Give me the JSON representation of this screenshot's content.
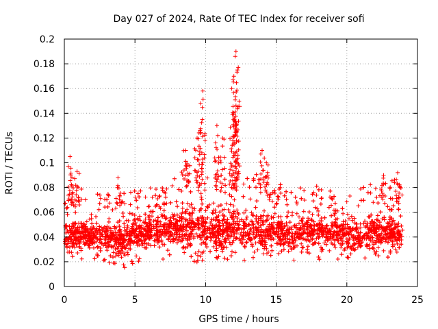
{
  "chart_data": {
    "type": "scatter",
    "title": "Day 027 of 2024, Rate Of TEC Index for receiver sofi",
    "xlabel": "GPS time / hours",
    "ylabel": "ROTI / TECUs",
    "xlim": [
      0,
      25
    ],
    "ylim": [
      0,
      0.2
    ],
    "xticks": [
      0,
      5,
      10,
      15,
      20,
      25
    ],
    "yticks": [
      0,
      0.02,
      0.04,
      0.06,
      0.08,
      0.1,
      0.12,
      0.14,
      0.16,
      0.18,
      0.2
    ],
    "xtick_labels": [
      "0",
      "5",
      "10",
      "15",
      "20",
      "25"
    ],
    "ytick_labels": [
      "0",
      "0.02",
      "0.04",
      "0.06",
      "0.08",
      "0.1",
      "0.12",
      "0.14",
      "0.16",
      "0.18",
      "0.2"
    ],
    "grid": true,
    "marker": "+",
    "color": "#ff0000",
    "series": [
      {
        "name": "ROTI",
        "envelope_hourly": {
          "hours": [
            0,
            1,
            2,
            3,
            4,
            5,
            6,
            7,
            8,
            9,
            10,
            11,
            12,
            13,
            14,
            15,
            16,
            17,
            18,
            19,
            20,
            21,
            22,
            23,
            24
          ],
          "low": [
            0.025,
            0.022,
            0.02,
            0.018,
            0.014,
            0.018,
            0.02,
            0.022,
            0.024,
            0.02,
            0.018,
            0.014,
            0.012,
            0.02,
            0.024,
            0.022,
            0.02,
            0.022,
            0.02,
            0.022,
            0.02,
            0.022,
            0.024,
            0.02,
            0.018
          ],
          "mid": [
            0.042,
            0.042,
            0.04,
            0.04,
            0.038,
            0.042,
            0.044,
            0.046,
            0.048,
            0.05,
            0.046,
            0.044,
            0.046,
            0.044,
            0.046,
            0.044,
            0.042,
            0.044,
            0.044,
            0.042,
            0.042,
            0.042,
            0.044,
            0.044,
            0.04
          ],
          "high": [
            0.085,
            0.08,
            0.075,
            0.075,
            0.08,
            0.08,
            0.08,
            0.08,
            0.09,
            0.11,
            0.09,
            0.1,
            0.1,
            0.09,
            0.1,
            0.085,
            0.08,
            0.08,
            0.082,
            0.078,
            0.08,
            0.08,
            0.085,
            0.09,
            0.08
          ]
        },
        "peaks": [
          {
            "x": 0.4,
            "y": 0.105
          },
          {
            "x": 0.9,
            "y": 0.093
          },
          {
            "x": 3.8,
            "y": 0.088
          },
          {
            "x": 8.6,
            "y": 0.11
          },
          {
            "x": 9.4,
            "y": 0.12
          },
          {
            "x": 9.65,
            "y": 0.148
          },
          {
            "x": 9.8,
            "y": 0.158
          },
          {
            "x": 10.8,
            "y": 0.13
          },
          {
            "x": 11.2,
            "y": 0.12
          },
          {
            "x": 11.85,
            "y": 0.16
          },
          {
            "x": 12.0,
            "y": 0.17
          },
          {
            "x": 12.1,
            "y": 0.186
          },
          {
            "x": 12.15,
            "y": 0.19
          },
          {
            "x": 12.25,
            "y": 0.175
          },
          {
            "x": 14.0,
            "y": 0.11
          },
          {
            "x": 14.3,
            "y": 0.1
          },
          {
            "x": 22.6,
            "y": 0.09
          },
          {
            "x": 23.6,
            "y": 0.092
          }
        ]
      }
    ]
  }
}
